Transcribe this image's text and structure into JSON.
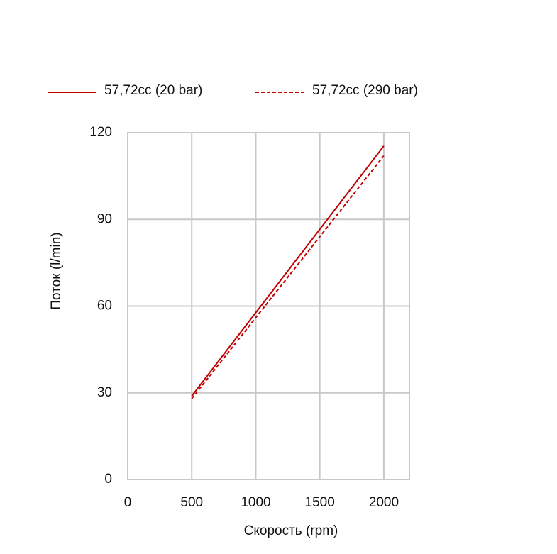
{
  "chart_data": {
    "type": "line",
    "x_label": "Скорость  (rpm)",
    "y_label": "Поток (l/min)",
    "x": [
      500,
      2000
    ],
    "series": [
      {
        "name": "57,72cc (20 bar)",
        "color": "#c00000",
        "dash": "solid",
        "values": [
          28.9,
          115.4
        ]
      },
      {
        "name": "57,72cc (290 bar)",
        "color": "#c00000",
        "dash": "dashed",
        "values": [
          28,
          112
        ]
      }
    ],
    "xlim": [
      0,
      2200
    ],
    "xticks": [
      0,
      500,
      1000,
      1500,
      2000
    ],
    "ylim": [
      0,
      120
    ],
    "yticks": [
      0,
      30,
      60,
      90,
      120
    ],
    "grid": true,
    "legend": "top"
  }
}
